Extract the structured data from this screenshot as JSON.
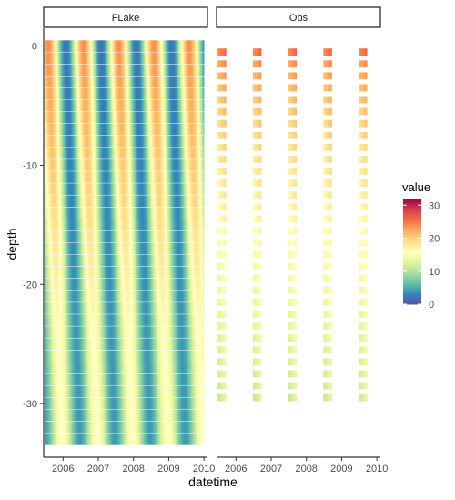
{
  "chart_data": {
    "type": "heatmap",
    "xlabel": "datetime",
    "ylabel": "depth",
    "legend": {
      "title": "value",
      "placement": "right",
      "range": [
        0,
        32
      ],
      "ticks": [
        0,
        10,
        20,
        30
      ]
    },
    "facets": [
      "FLake",
      "Obs"
    ],
    "x_ticks": [
      "2006",
      "2007",
      "2008",
      "2009",
      "2010"
    ],
    "y_ticks": [
      0,
      -10,
      -20,
      -30
    ],
    "xlim": [
      2005.45,
      2010.1
    ],
    "ylim": [
      -34.5,
      1.5
    ],
    "colorscale": [
      "#5E4FA2",
      "#3288BD",
      "#66C2A5",
      "#ABDDA4",
      "#E6F598",
      "#FFFFBF",
      "#FEE08B",
      "#FDAE61",
      "#F46D43",
      "#D53E4F",
      "#9E0142"
    ],
    "series": [
      {
        "name": "FLake",
        "x_range": [
          2005.5,
          2010.0
        ],
        "depth_range": [
          0,
          -33
        ],
        "depth_step": 1,
        "note_values": "seasonal cycle: surface ~24 summer peak, ~2 winter minimum; deep layers ~14 summer, ~4 winter"
      },
      {
        "name": "Obs",
        "obs_years": [
          2005.6,
          2006.6,
          2007.6,
          2008.6,
          2009.6
        ],
        "depths": [
          -0.5,
          -1.5,
          -2.5,
          -3.5,
          -4.5,
          -5.5,
          -6.5,
          -7.5,
          -8.5,
          -9.5,
          -10.5,
          -11.5,
          -12.5,
          -13.5,
          -14.5,
          -15.5,
          -16.5,
          -17.5,
          -18.5,
          -19.5,
          -20.5,
          -21.5,
          -22.5,
          -23.5,
          -24.5,
          -25.5,
          -26.5,
          -27.5,
          -28.5,
          -29.5
        ],
        "surface_value": 25,
        "bottom_value": 12
      }
    ]
  }
}
